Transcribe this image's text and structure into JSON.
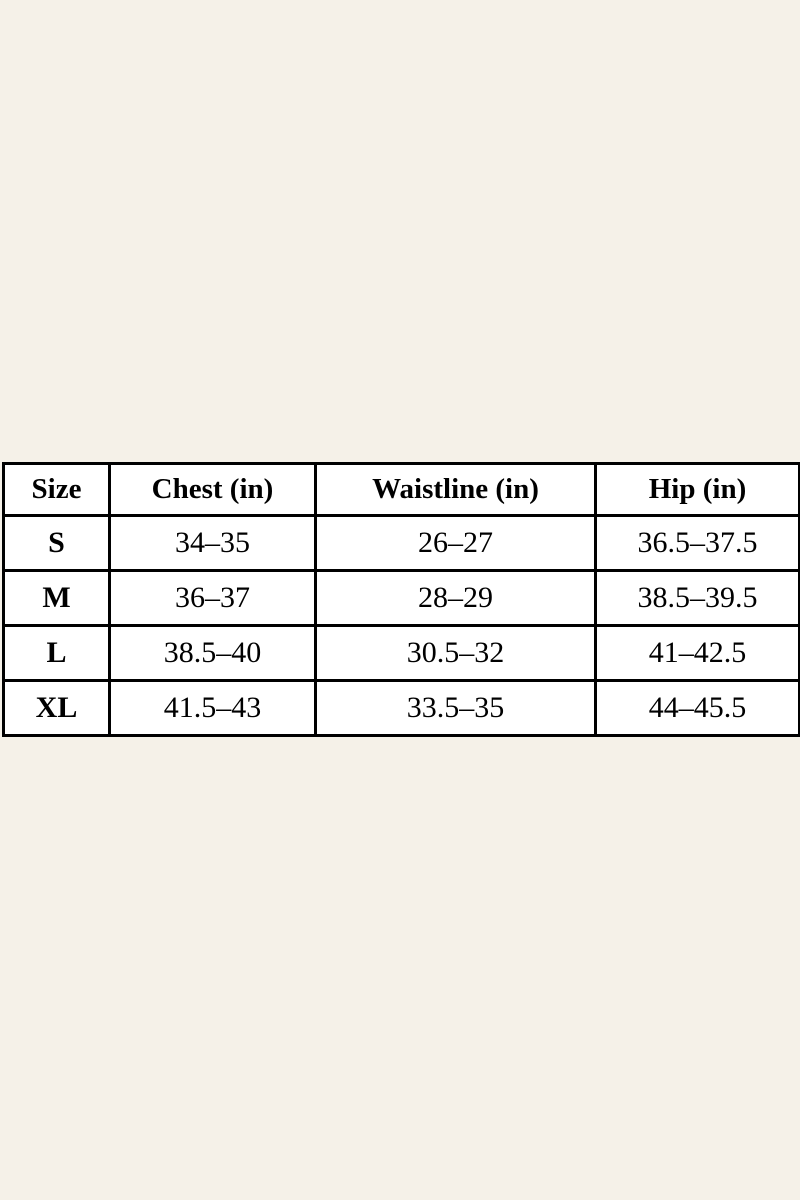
{
  "page": {
    "background_color": "#F5F1E8",
    "text_color": "#000000",
    "table_border_color": "#000000",
    "table_cell_background": "#FFFFFF"
  },
  "size_chart": {
    "headers": [
      "Size",
      "Chest (in)",
      "Waistline (in)",
      "Hip (in)"
    ],
    "rows": [
      {
        "size": "S",
        "chest": "34–35",
        "waistline": "26–27",
        "hip": "36.5–37.5"
      },
      {
        "size": "M",
        "chest": "36–37",
        "waistline": "28–29",
        "hip": "38.5–39.5"
      },
      {
        "size": "L",
        "chest": "38.5–40",
        "waistline": "30.5–32",
        "hip": "41–42.5"
      },
      {
        "size": "XL",
        "chest": "41.5–43",
        "waistline": "33.5–35",
        "hip": "44–45.5"
      }
    ]
  }
}
